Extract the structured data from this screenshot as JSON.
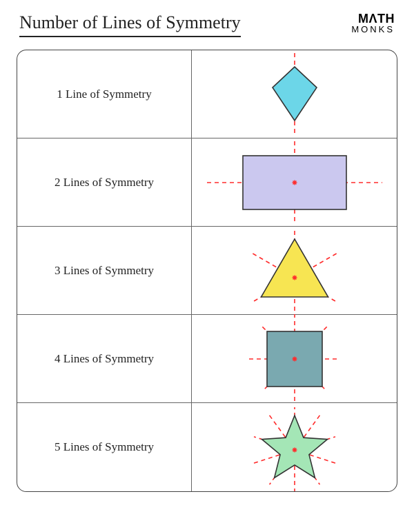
{
  "title": "Number of Lines of Symmetry",
  "logo": {
    "top": "MΛTH",
    "bottom": "MONKS"
  },
  "stroke_shape": "#333333",
  "symmetry_line": {
    "stroke": "#ff2b2b",
    "width": 1.6,
    "dash": "6,5"
  },
  "rows": [
    {
      "label": "1 Line of Symmetry",
      "shape": "kite",
      "fill": "#6cd6e8",
      "lines": 1
    },
    {
      "label": "2 Lines of Symmetry",
      "shape": "rectangle",
      "fill": "#cbc8ef",
      "lines": 2
    },
    {
      "label": "3 Lines of Symmetry",
      "shape": "triangle",
      "fill": "#f7e552",
      "lines": 3
    },
    {
      "label": "4 Lines of Symmetry",
      "shape": "square",
      "fill": "#7aa9b0",
      "lines": 4
    },
    {
      "label": "5 Lines of Symmetry",
      "shape": "star",
      "fill": "#a4e6b6",
      "lines": 5
    }
  ]
}
